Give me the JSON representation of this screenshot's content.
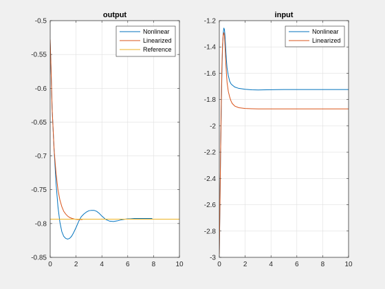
{
  "chart_data": [
    {
      "type": "line",
      "title": "output",
      "xlabel": "",
      "ylabel": "",
      "xlim": [
        0,
        10
      ],
      "ylim": [
        -0.85,
        -0.5
      ],
      "xticks": [
        "0",
        "2",
        "4",
        "6",
        "8",
        "10"
      ],
      "yticks": [
        "-0.5",
        "-0.55",
        "-0.6",
        "-0.65",
        "-0.7",
        "-0.75",
        "-0.8",
        "-0.85"
      ],
      "grid": true,
      "legend_position": "top-right",
      "series": [
        {
          "name": "Nonlinear",
          "color": "#0072bd",
          "x": [
            0,
            0.05,
            0.15,
            0.3,
            0.45,
            0.6,
            0.75,
            0.9,
            1.05,
            1.2,
            1.35,
            1.5,
            1.65,
            1.8,
            2.0,
            2.2,
            2.4,
            2.6,
            2.8,
            3.0,
            3.2,
            3.4,
            3.6,
            3.8,
            4.0,
            4.3,
            4.6,
            4.9,
            5.2,
            5.5,
            5.8,
            6.0,
            6.2,
            6.5,
            7.0,
            7.5,
            7.9
          ],
          "y": [
            -0.532,
            -0.56,
            -0.63,
            -0.69,
            -0.74,
            -0.775,
            -0.798,
            -0.812,
            -0.819,
            -0.822,
            -0.823,
            -0.822,
            -0.819,
            -0.814,
            -0.806,
            -0.797,
            -0.79,
            -0.786,
            -0.783,
            -0.781,
            -0.7805,
            -0.7805,
            -0.782,
            -0.785,
            -0.789,
            -0.794,
            -0.7965,
            -0.797,
            -0.796,
            -0.7945,
            -0.7935,
            -0.793,
            -0.793,
            -0.7925,
            -0.7925,
            -0.7925,
            -0.7925
          ]
        },
        {
          "name": "Linearized",
          "color": "#d95319",
          "x": [
            0,
            0.05,
            0.15,
            0.3,
            0.45,
            0.6,
            0.75,
            0.9,
            1.05,
            1.2,
            1.35,
            1.5,
            1.7,
            1.9,
            2.1,
            2.3,
            2.5
          ],
          "y": [
            -0.528,
            -0.56,
            -0.63,
            -0.69,
            -0.725,
            -0.75,
            -0.765,
            -0.775,
            -0.782,
            -0.786,
            -0.789,
            -0.791,
            -0.7925,
            -0.7935,
            -0.794,
            -0.794,
            -0.794
          ]
        },
        {
          "name": "Reference",
          "color": "#edb120",
          "x": [
            0,
            10
          ],
          "y": [
            -0.7935,
            -0.7935
          ]
        }
      ]
    },
    {
      "type": "line",
      "title": "input",
      "xlabel": "",
      "ylabel": "",
      "xlim": [
        0,
        10
      ],
      "ylim": [
        -3,
        -1.2
      ],
      "xticks": [
        "0",
        "2",
        "4",
        "6",
        "8",
        "10"
      ],
      "yticks": [
        "-1.2",
        "-1.4",
        "-1.6",
        "-1.8",
        "-2",
        "-2.2",
        "-2.4",
        "-2.6",
        "-2.8",
        "-3"
      ],
      "grid": true,
      "legend_position": "top-right",
      "series": [
        {
          "name": "Nonlinear",
          "color": "#0072bd",
          "x": [
            0,
            0.05,
            0.1,
            0.15,
            0.2,
            0.25,
            0.3,
            0.35,
            0.4,
            0.45,
            0.5,
            0.55,
            0.6,
            0.7,
            0.8,
            0.9,
            1.0,
            1.2,
            1.5,
            2.0,
            2.5,
            3.0,
            4.0,
            5.0,
            6.0,
            7.0,
            8.0,
            9.0,
            10.0
          ],
          "y": [
            -2.98,
            -2.6,
            -2.2,
            -1.9,
            -1.6,
            -1.4,
            -1.3,
            -1.255,
            -1.27,
            -1.33,
            -1.42,
            -1.5,
            -1.56,
            -1.62,
            -1.66,
            -1.68,
            -1.69,
            -1.705,
            -1.715,
            -1.722,
            -1.726,
            -1.727,
            -1.725,
            -1.724,
            -1.724,
            -1.724,
            -1.724,
            -1.724,
            -1.724
          ]
        },
        {
          "name": "Linearized",
          "color": "#d95319",
          "x": [
            0,
            0.05,
            0.1,
            0.15,
            0.2,
            0.25,
            0.3,
            0.35,
            0.4,
            0.45,
            0.5,
            0.55,
            0.6,
            0.7,
            0.8,
            0.9,
            1.0,
            1.2,
            1.5,
            2.0,
            2.5,
            3.0,
            4.0,
            5.0,
            6.0,
            7.0,
            8.0,
            9.0,
            10.0
          ],
          "y": [
            -2.98,
            -2.6,
            -2.2,
            -1.85,
            -1.55,
            -1.38,
            -1.31,
            -1.29,
            -1.32,
            -1.41,
            -1.52,
            -1.6,
            -1.67,
            -1.74,
            -1.78,
            -1.81,
            -1.83,
            -1.85,
            -1.862,
            -1.868,
            -1.87,
            -1.871,
            -1.871,
            -1.871,
            -1.871,
            -1.871,
            -1.871,
            -1.871,
            -1.871
          ]
        }
      ]
    }
  ]
}
